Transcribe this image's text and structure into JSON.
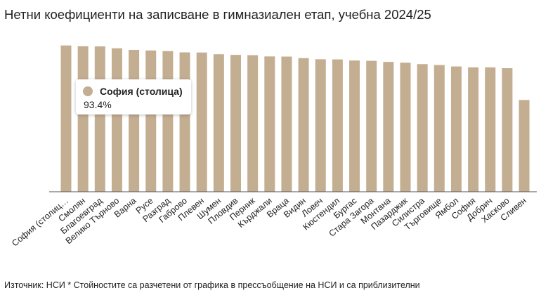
{
  "chart_data": {
    "type": "bar",
    "title": "Нетни коефициенти на записване в гимназиален етап, учебна 2024/25",
    "categories": [
      "София (столиц…",
      "Смолян",
      "Благоевград",
      "Велико Търново",
      "Варна",
      "Русе",
      "Разград",
      "Габрово",
      "Плевен",
      "Шумен",
      "Пловдив",
      "Перник",
      "Кърджали",
      "Враца",
      "Видин",
      "Ловеч",
      "Кюстендил",
      "Бургас",
      "Стара Загора",
      "Монтана",
      "Пазарджик",
      "Силистра",
      "Търговище",
      "Ямбол",
      "София",
      "Добрич",
      "Хасково",
      "Сливен"
    ],
    "values": [
      93.4,
      92.9,
      92.8,
      91.6,
      90.6,
      90.2,
      89.8,
      89.0,
      88.9,
      87.8,
      87.4,
      87.2,
      86.4,
      86.3,
      85.3,
      84.6,
      84.5,
      83.8,
      83.6,
      82.9,
      82.4,
      81.5,
      80.9,
      80.0,
      79.4,
      79.4,
      78.9,
      58.6
    ],
    "ylim": [
      0,
      100
    ],
    "color": "#c4ae92",
    "grid": false,
    "legend": "none",
    "tooltip": {
      "name": "София (столица)",
      "value": "93.4%"
    },
    "source": "Източник: НСИ * Стойностите са разчетени от графика в прессъобщение на НСИ и са приблизителни"
  }
}
